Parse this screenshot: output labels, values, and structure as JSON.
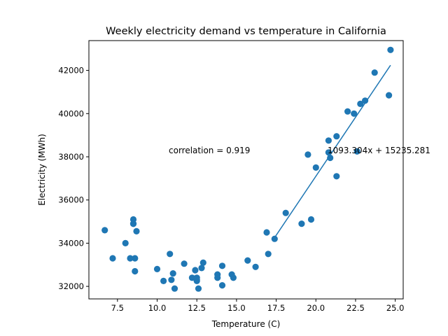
{
  "chart_data": {
    "type": "scatter",
    "title": "Weekly electricity demand vs temperature in California",
    "xlabel": "Temperature (C)",
    "ylabel": "Electricity (MWh)",
    "xlim": [
      5.7,
      25.5
    ],
    "ylim": [
      31420,
      43380
    ],
    "x_ticks": [
      7.5,
      10.0,
      12.5,
      15.0,
      17.5,
      20.0,
      22.5,
      25.0
    ],
    "x_tick_labels": [
      "7.5",
      "10.0",
      "12.5",
      "15.0",
      "17.5",
      "20.0",
      "22.5",
      "25.0"
    ],
    "y_ticks": [
      32000,
      34000,
      36000,
      38000,
      40000,
      42000
    ],
    "y_tick_labels": [
      "32000",
      "34000",
      "36000",
      "38000",
      "40000",
      "42000"
    ],
    "grid": false,
    "marker_color": "#1f77b4",
    "series": [
      {
        "x": [
          6.7,
          7.2,
          8.0,
          8.3,
          8.5,
          8.5,
          8.6,
          8.6,
          8.5,
          8.7,
          10.0,
          10.4,
          10.8,
          10.9,
          11.0,
          11.1,
          11.7,
          12.2,
          12.4,
          12.5,
          12.5,
          12.6,
          12.5,
          12.8,
          12.9,
          13.8,
          13.8,
          14.1,
          14.1,
          14.7,
          14.8,
          15.7,
          16.2,
          16.9,
          17.0,
          17.4,
          18.1,
          19.1,
          19.5,
          19.7,
          20.0,
          20.8,
          20.8,
          20.9,
          21.3,
          21.3,
          22.0,
          22.4,
          22.6,
          22.8,
          23.1,
          23.7,
          24.6,
          24.7
        ],
        "y": [
          34600,
          33300,
          34000,
          33300,
          35100,
          34900,
          33300,
          32700,
          34900,
          34550,
          32800,
          32250,
          33500,
          32300,
          32600,
          31900,
          33050,
          32400,
          32750,
          32250,
          32300,
          31900,
          32400,
          32850,
          33100,
          32550,
          32400,
          32050,
          32950,
          32550,
          32400,
          33200,
          32900,
          34500,
          33500,
          34200,
          35400,
          34900,
          38100,
          35100,
          37500,
          38750,
          38200,
          37950,
          38950,
          37100,
          40100,
          40000,
          38250,
          40450,
          40600,
          41900,
          40850,
          42950
        ]
      }
    ],
    "fit_line": {
      "slope": 1093.304,
      "intercept": 15235.281,
      "x_range": [
        17.4,
        24.7
      ]
    },
    "annotations": {
      "correlation": "correlation = 0.919",
      "equation": "1093.304x + 15235.281"
    }
  }
}
